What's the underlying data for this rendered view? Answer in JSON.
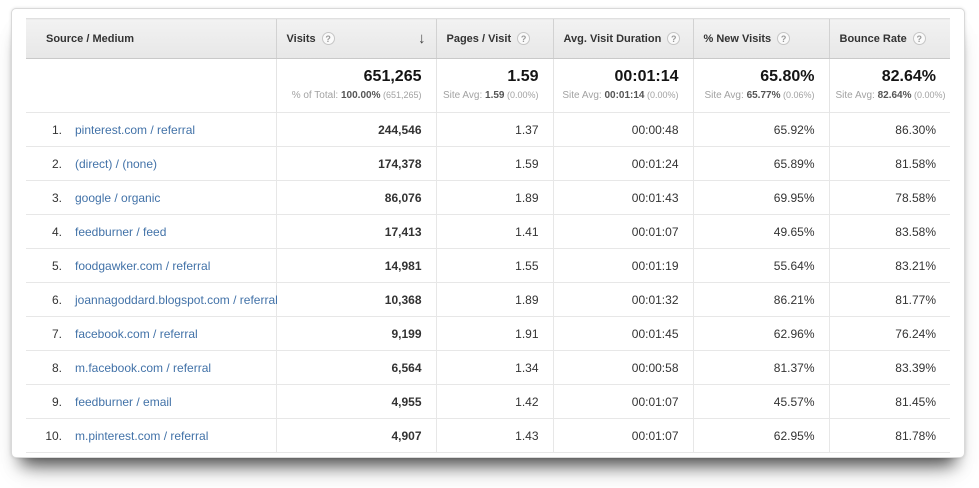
{
  "table": {
    "header": {
      "source_medium": "Source / Medium",
      "visits": "Visits",
      "pages_per_visit": "Pages / Visit",
      "avg_visit_duration": "Avg. Visit Duration",
      "pct_new_visits": "% New Visits",
      "bounce_rate": "Bounce Rate"
    },
    "summary": {
      "visits_value": "651,265",
      "visits_sub_prefix": "% of Total: ",
      "visits_sub_value": "100.00%",
      "visits_sub_paren": " (651,265)",
      "pages_value": "1.59",
      "pages_sub_prefix": "Site Avg: ",
      "pages_sub_value": "1.59",
      "pages_sub_paren": " (0.00%)",
      "duration_value": "00:01:14",
      "duration_sub_prefix": "Site Avg: ",
      "duration_sub_value": "00:01:14",
      "duration_sub_paren": " (0.00%)",
      "new_visits_value": "65.80%",
      "new_visits_sub_prefix": "Site Avg: ",
      "new_visits_sub_value": "65.77%",
      "new_visits_sub_paren": " (0.06%)",
      "bounce_value": "82.64%",
      "bounce_sub_prefix": "Site Avg: ",
      "bounce_sub_value": "82.64%",
      "bounce_sub_paren": " (0.00%)"
    },
    "rows": [
      {
        "rank": "1.",
        "source": "pinterest.com / referral",
        "visits": "244,546",
        "pages": "1.37",
        "duration": "00:00:48",
        "new_visits": "65.92%",
        "bounce": "86.30%"
      },
      {
        "rank": "2.",
        "source": "(direct) / (none)",
        "visits": "174,378",
        "pages": "1.59",
        "duration": "00:01:24",
        "new_visits": "65.89%",
        "bounce": "81.58%"
      },
      {
        "rank": "3.",
        "source": "google / organic",
        "visits": "86,076",
        "pages": "1.89",
        "duration": "00:01:43",
        "new_visits": "69.95%",
        "bounce": "78.58%"
      },
      {
        "rank": "4.",
        "source": "feedburner / feed",
        "visits": "17,413",
        "pages": "1.41",
        "duration": "00:01:07",
        "new_visits": "49.65%",
        "bounce": "83.58%"
      },
      {
        "rank": "5.",
        "source": "foodgawker.com / referral",
        "visits": "14,981",
        "pages": "1.55",
        "duration": "00:01:19",
        "new_visits": "55.64%",
        "bounce": "83.21%"
      },
      {
        "rank": "6.",
        "source": "joannagoddard.blogspot.com / referral",
        "visits": "10,368",
        "pages": "1.89",
        "duration": "00:01:32",
        "new_visits": "86.21%",
        "bounce": "81.77%"
      },
      {
        "rank": "7.",
        "source": "facebook.com / referral",
        "visits": "9,199",
        "pages": "1.91",
        "duration": "00:01:45",
        "new_visits": "62.96%",
        "bounce": "76.24%"
      },
      {
        "rank": "8.",
        "source": "m.facebook.com / referral",
        "visits": "6,564",
        "pages": "1.34",
        "duration": "00:00:58",
        "new_visits": "81.37%",
        "bounce": "83.39%"
      },
      {
        "rank": "9.",
        "source": "feedburner / email",
        "visits": "4,955",
        "pages": "1.42",
        "duration": "00:01:07",
        "new_visits": "45.57%",
        "bounce": "81.45%"
      },
      {
        "rank": "10.",
        "source": "m.pinterest.com / referral",
        "visits": "4,907",
        "pages": "1.43",
        "duration": "00:01:07",
        "new_visits": "62.95%",
        "bounce": "81.78%"
      }
    ]
  },
  "icons": {
    "help": "?",
    "sort_descending": "↓"
  },
  "colors": {
    "link_blue": "#4272a8",
    "header_bg": "#e9e9e9",
    "header_text": "#333333",
    "value_text": "#333333",
    "muted_text": "#a2a2a2"
  }
}
